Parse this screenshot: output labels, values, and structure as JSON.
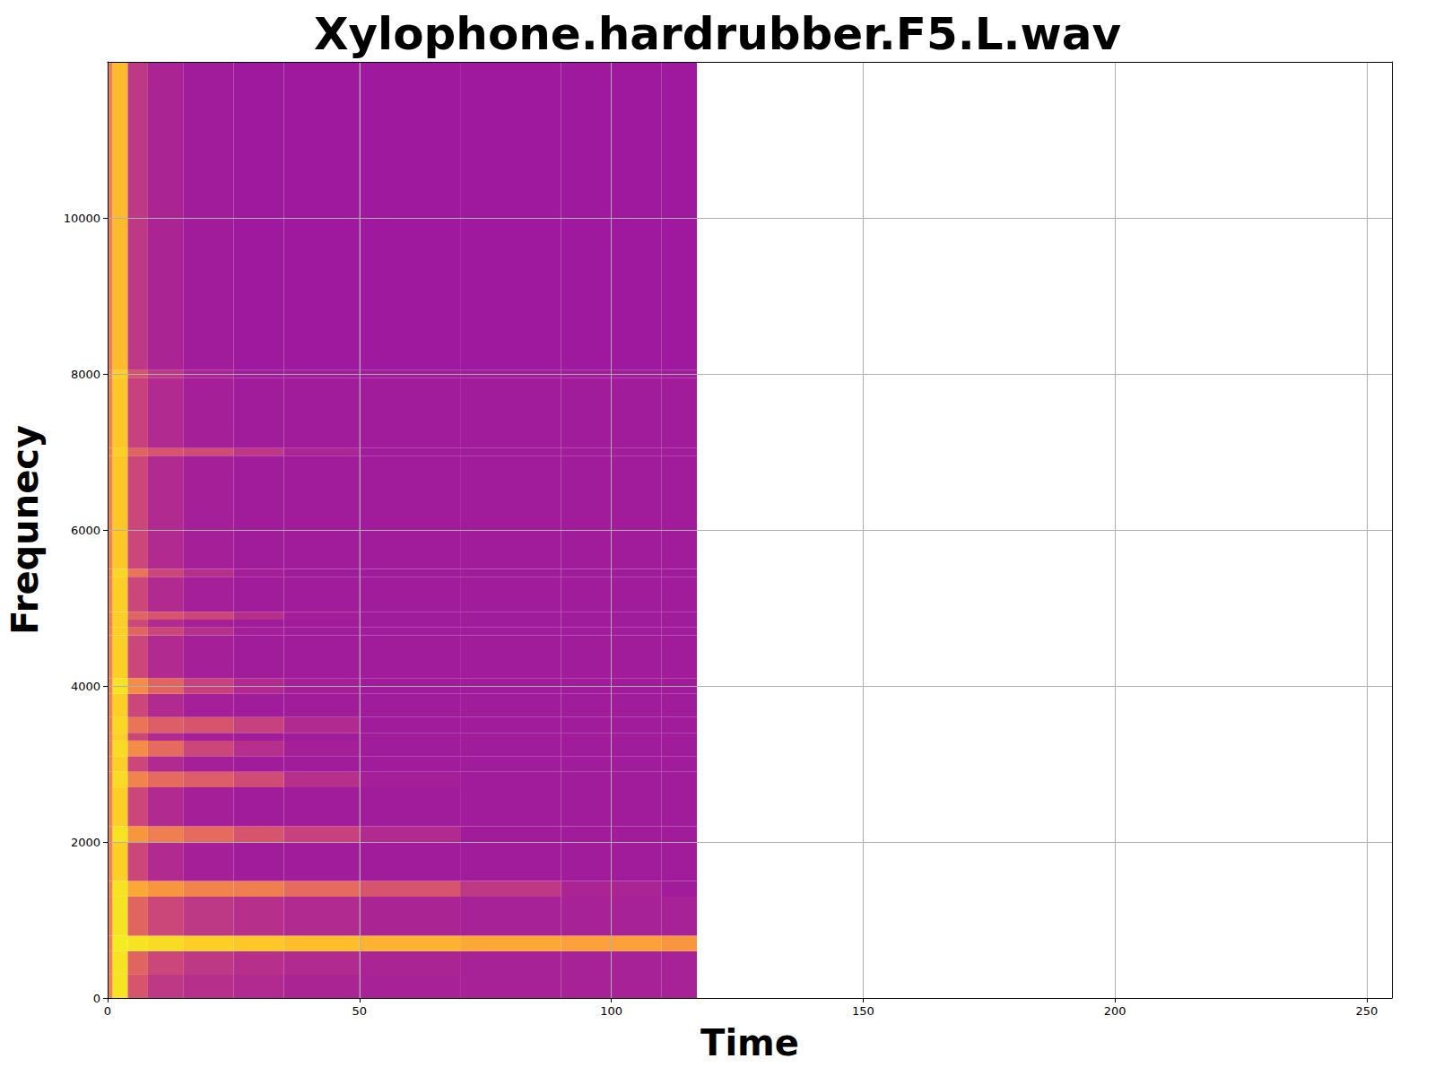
{
  "chart_data": {
    "type": "heatmap",
    "title": "Xylophone.hardrubber.F5.L.wav",
    "x_label": "Time",
    "y_label": "Frequnecy",
    "xlim": [
      0,
      255
    ],
    "xticks": [
      0,
      50,
      100,
      150,
      200,
      250
    ],
    "ylim": [
      0,
      12000
    ],
    "yticks": [
      0,
      2000,
      4000,
      6000,
      8000,
      10000
    ],
    "grid": true,
    "zlim": [
      0,
      1
    ],
    "time_edges": [
      0,
      1,
      4,
      8,
      15,
      25,
      35,
      50,
      70,
      90,
      110,
      117
    ],
    "freq_edges": [
      0,
      300,
      600,
      800,
      1300,
      1500,
      2000,
      2200,
      2700,
      2900,
      3100,
      3300,
      3400,
      3600,
      3900,
      4100,
      4650,
      4750,
      4850,
      4950,
      5400,
      5500,
      6950,
      7050,
      7950,
      8050,
      12000
    ],
    "z": [
      [
        0.7,
        0.95,
        0.55,
        0.45,
        0.42,
        0.4,
        0.38,
        0.37,
        0.37,
        0.37,
        0.37
      ],
      [
        0.7,
        0.95,
        0.6,
        0.5,
        0.45,
        0.42,
        0.4,
        0.38,
        0.37,
        0.37,
        0.37
      ],
      [
        0.7,
        0.97,
        0.95,
        0.93,
        0.9,
        0.88,
        0.86,
        0.83,
        0.8,
        0.78,
        0.75
      ],
      [
        0.7,
        0.95,
        0.6,
        0.5,
        0.45,
        0.42,
        0.4,
        0.38,
        0.37,
        0.37,
        0.37
      ],
      [
        0.7,
        0.95,
        0.8,
        0.75,
        0.7,
        0.68,
        0.62,
        0.55,
        0.45,
        0.38,
        0.35
      ],
      [
        0.7,
        0.9,
        0.5,
        0.4,
        0.36,
        0.35,
        0.35,
        0.35,
        0.35,
        0.35,
        0.35
      ],
      [
        0.7,
        0.95,
        0.75,
        0.68,
        0.62,
        0.55,
        0.48,
        0.4,
        0.35,
        0.35,
        0.35
      ],
      [
        0.7,
        0.9,
        0.5,
        0.4,
        0.36,
        0.35,
        0.35,
        0.35,
        0.35,
        0.35,
        0.35
      ],
      [
        0.7,
        0.93,
        0.7,
        0.62,
        0.58,
        0.52,
        0.42,
        0.36,
        0.35,
        0.35,
        0.35
      ],
      [
        0.7,
        0.9,
        0.5,
        0.4,
        0.36,
        0.35,
        0.35,
        0.35,
        0.35,
        0.35,
        0.35
      ],
      [
        0.7,
        0.93,
        0.72,
        0.62,
        0.5,
        0.42,
        0.36,
        0.35,
        0.35,
        0.35,
        0.35
      ],
      [
        0.7,
        0.9,
        0.5,
        0.4,
        0.36,
        0.35,
        0.35,
        0.35,
        0.35,
        0.35,
        0.35
      ],
      [
        0.7,
        0.92,
        0.65,
        0.58,
        0.55,
        0.48,
        0.4,
        0.35,
        0.35,
        0.35,
        0.35
      ],
      [
        0.7,
        0.9,
        0.5,
        0.4,
        0.36,
        0.35,
        0.35,
        0.35,
        0.35,
        0.35,
        0.35
      ],
      [
        0.7,
        0.95,
        0.72,
        0.6,
        0.48,
        0.4,
        0.36,
        0.35,
        0.35,
        0.35,
        0.35
      ],
      [
        0.7,
        0.9,
        0.5,
        0.4,
        0.36,
        0.35,
        0.35,
        0.35,
        0.35,
        0.35,
        0.35
      ],
      [
        0.7,
        0.9,
        0.6,
        0.5,
        0.42,
        0.36,
        0.35,
        0.35,
        0.35,
        0.35,
        0.35
      ],
      [
        0.7,
        0.9,
        0.5,
        0.4,
        0.36,
        0.35,
        0.35,
        0.35,
        0.35,
        0.35,
        0.35
      ],
      [
        0.7,
        0.9,
        0.6,
        0.55,
        0.5,
        0.42,
        0.36,
        0.35,
        0.35,
        0.35,
        0.35
      ],
      [
        0.7,
        0.9,
        0.5,
        0.4,
        0.36,
        0.35,
        0.35,
        0.35,
        0.35,
        0.35,
        0.35
      ],
      [
        0.7,
        0.92,
        0.65,
        0.5,
        0.42,
        0.36,
        0.35,
        0.35,
        0.35,
        0.35,
        0.35
      ],
      [
        0.7,
        0.88,
        0.5,
        0.4,
        0.36,
        0.35,
        0.35,
        0.35,
        0.35,
        0.35,
        0.35
      ],
      [
        0.7,
        0.9,
        0.6,
        0.55,
        0.52,
        0.45,
        0.38,
        0.35,
        0.35,
        0.35,
        0.35
      ],
      [
        0.7,
        0.88,
        0.48,
        0.4,
        0.36,
        0.35,
        0.35,
        0.35,
        0.35,
        0.35,
        0.35
      ],
      [
        0.7,
        0.9,
        0.55,
        0.45,
        0.38,
        0.35,
        0.35,
        0.35,
        0.35,
        0.35,
        0.35
      ],
      [
        0.68,
        0.85,
        0.45,
        0.38,
        0.35,
        0.34,
        0.34,
        0.34,
        0.34,
        0.34,
        0.34
      ]
    ]
  }
}
